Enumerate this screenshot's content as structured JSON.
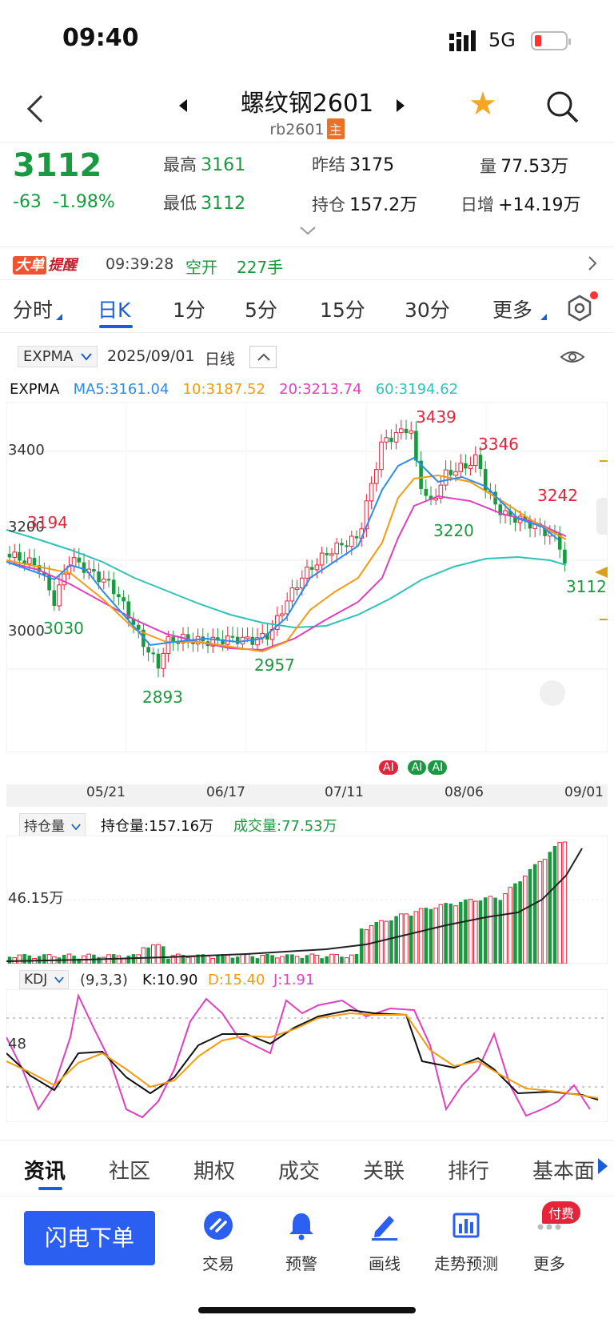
{
  "status": {
    "time": "09:40",
    "network": "5G"
  },
  "header": {
    "title": "螺纹钢2601",
    "code": "rb2601",
    "main_tag": "主"
  },
  "quote": {
    "price": "3112",
    "change": "-63",
    "change_pct": "-1.98%",
    "high_label": "最高",
    "high": "3161",
    "low_label": "最低",
    "low": "3112",
    "prev_settle_label": "昨结",
    "prev_settle": "3175",
    "open_interest_label": "持仓",
    "open_interest": "157.2万",
    "volume_label": "量",
    "volume": "77.53万",
    "daily_increase_label": "日增",
    "daily_increase": "+14.19万"
  },
  "alert": {
    "badge_a": "大单",
    "badge_b": "提醒",
    "time": "09:39:28",
    "action": "空开",
    "quantity": "227手"
  },
  "tabs": [
    {
      "label": "分时"
    },
    {
      "label": "日K"
    },
    {
      "label": "1分"
    },
    {
      "label": "5分"
    },
    {
      "label": "15分"
    },
    {
      "label": "30分"
    },
    {
      "label": "更多"
    }
  ],
  "indicator_bar": {
    "selected": "EXPMA",
    "date": "2025/09/01",
    "period": "日线"
  },
  "ema": {
    "name": "EXPMA",
    "ma5": "MA5:3161.04",
    "ma10": "10:3187.52",
    "ma20": "20:3213.74",
    "ma60": "60:3194.62"
  },
  "price_chart": {
    "axis_labels": [
      "3400",
      "3200",
      "3000"
    ],
    "annotations": {
      "high": "3439",
      "a2": "3346",
      "a3": "3242",
      "a4": "3194",
      "a5": "3220",
      "a6": "3030",
      "a7": "2957",
      "a8": "2893",
      "last": "3112"
    },
    "ai_badges": [
      "AI",
      "AI",
      "AI"
    ]
  },
  "date_axis": [
    "05/21",
    "06/17",
    "07/11",
    "08/06",
    "09/01"
  ],
  "oi_panel": {
    "selected": "持仓量",
    "oi_text": "持仓量:157.16万",
    "vol_text": "成交量:77.53万",
    "axis_label": "46.15万"
  },
  "kdj": {
    "selected": "KDJ",
    "params": "(9,3,3)",
    "k": "K:10.90",
    "d": "D:15.40",
    "j": "J:1.91",
    "axis_label": "48"
  },
  "bottom_tabs": [
    {
      "label": "资讯"
    },
    {
      "label": "社区"
    },
    {
      "label": "期权"
    },
    {
      "label": "成交"
    },
    {
      "label": "关联"
    },
    {
      "label": "排行"
    },
    {
      "label": "基本面"
    }
  ],
  "toolbar": {
    "flash_order": "闪电下单",
    "items": [
      {
        "label": "交易"
      },
      {
        "label": "预警"
      },
      {
        "label": "画线"
      },
      {
        "label": "走势预测"
      },
      {
        "label": "更多"
      }
    ],
    "paid_badge": "付费"
  },
  "colors": {
    "up": "#e3243b",
    "down": "#1a9a40",
    "accent": "#1a5dd9",
    "ma5": "#2a8cf0",
    "ma10": "#f39c12",
    "ma20": "#e040c0",
    "ma60": "#2ec4b6"
  }
}
